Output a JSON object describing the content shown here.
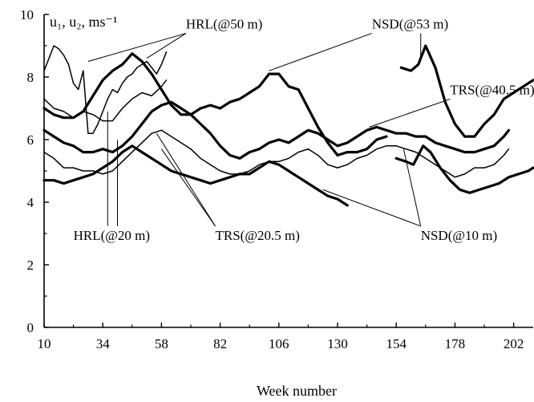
{
  "chart_data": {
    "type": "line",
    "xlabel": "Week number",
    "ylabel": "u₁, u₂, ms⁻¹",
    "xlim": [
      10,
      210
    ],
    "ylim": [
      0,
      10
    ],
    "xticks": [
      10,
      34,
      58,
      82,
      106,
      130,
      154,
      178,
      202
    ],
    "yticks": [
      0,
      2,
      4,
      6,
      8,
      10
    ],
    "grid": false,
    "series": [
      {
        "name": "HRL(@50 m)",
        "weight": "thin",
        "segments": [
          [
            [
              10,
              8.2
            ],
            [
              12,
              8.6
            ],
            [
              14,
              9.0
            ],
            [
              16,
              8.9
            ],
            [
              18,
              8.7
            ],
            [
              20,
              8.4
            ],
            [
              22,
              7.8
            ],
            [
              24,
              7.6
            ],
            [
              26,
              8.2
            ],
            [
              28,
              6.2
            ],
            [
              30,
              6.2
            ],
            [
              32,
              6.5
            ],
            [
              34,
              6.9
            ],
            [
              36,
              7.3
            ],
            [
              38,
              7.6
            ],
            [
              40,
              7.5
            ],
            [
              42,
              7.8
            ],
            [
              44,
              8.0
            ],
            [
              46,
              8.1
            ],
            [
              48,
              8.3
            ],
            [
              50,
              8.4
            ],
            [
              52,
              8.5
            ],
            [
              54,
              8.3
            ],
            [
              56,
              8.1
            ],
            [
              58,
              8.4
            ],
            [
              60,
              8.8
            ]
          ]
        ]
      },
      {
        "name": "NSD(@53 m)",
        "weight": "thick",
        "segments": [
          [
            [
              10,
              7.0
            ],
            [
              14,
              6.8
            ],
            [
              18,
              6.7
            ],
            [
              22,
              6.7
            ],
            [
              26,
              6.9
            ],
            [
              30,
              7.4
            ],
            [
              34,
              7.9
            ],
            [
              38,
              8.2
            ],
            [
              42,
              8.4
            ],
            [
              46,
              8.75
            ],
            [
              50,
              8.5
            ],
            [
              54,
              8.1
            ],
            [
              58,
              7.6
            ],
            [
              62,
              7.1
            ],
            [
              66,
              6.8
            ],
            [
              70,
              6.8
            ],
            [
              74,
              7.0
            ],
            [
              78,
              7.1
            ],
            [
              82,
              7.0
            ],
            [
              86,
              7.2
            ],
            [
              90,
              7.3
            ],
            [
              94,
              7.5
            ],
            [
              98,
              7.7
            ],
            [
              102,
              8.1
            ],
            [
              106,
              8.1
            ],
            [
              110,
              7.7
            ],
            [
              114,
              7.6
            ],
            [
              118,
              7.0
            ],
            [
              122,
              6.4
            ],
            [
              126,
              5.9
            ],
            [
              130,
              5.5
            ],
            [
              134,
              5.6
            ],
            [
              138,
              5.6
            ],
            [
              142,
              5.7
            ],
            [
              146,
              6.0
            ],
            [
              150,
              6.1
            ]
          ],
          [
            [
              156,
              8.3
            ],
            [
              160,
              8.2
            ],
            [
              163,
              8.4
            ],
            [
              166,
              9.0
            ],
            [
              170,
              8.3
            ],
            [
              174,
              7.2
            ],
            [
              178,
              6.5
            ],
            [
              182,
              6.1
            ],
            [
              186,
              6.1
            ],
            [
              190,
              6.5
            ],
            [
              194,
              6.8
            ],
            [
              198,
              7.3
            ],
            [
              202,
              7.5
            ],
            [
              206,
              7.7
            ],
            [
              210,
              7.9
            ]
          ]
        ]
      },
      {
        "name": "TRS(@40.5 m)",
        "weight": "thick",
        "segments": [
          [
            [
              10,
              6.3
            ],
            [
              14,
              6.1
            ],
            [
              18,
              5.9
            ],
            [
              22,
              5.8
            ],
            [
              26,
              5.6
            ],
            [
              30,
              5.6
            ],
            [
              34,
              5.7
            ],
            [
              38,
              5.6
            ],
            [
              42,
              5.8
            ],
            [
              46,
              6.1
            ],
            [
              50,
              6.5
            ],
            [
              54,
              6.9
            ],
            [
              58,
              7.1
            ],
            [
              62,
              7.2
            ],
            [
              66,
              7.0
            ],
            [
              70,
              6.8
            ],
            [
              74,
              6.5
            ],
            [
              78,
              6.2
            ],
            [
              82,
              5.8
            ],
            [
              86,
              5.5
            ],
            [
              90,
              5.4
            ],
            [
              94,
              5.6
            ],
            [
              98,
              5.7
            ],
            [
              102,
              5.9
            ],
            [
              106,
              6.0
            ],
            [
              110,
              5.9
            ],
            [
              114,
              6.1
            ],
            [
              118,
              6.3
            ],
            [
              122,
              6.2
            ],
            [
              126,
              6.0
            ],
            [
              130,
              5.8
            ],
            [
              134,
              5.9
            ],
            [
              138,
              6.1
            ],
            [
              142,
              6.3
            ],
            [
              146,
              6.4
            ],
            [
              150,
              6.3
            ],
            [
              154,
              6.2
            ],
            [
              158,
              6.2
            ],
            [
              162,
              6.1
            ],
            [
              166,
              6.1
            ],
            [
              170,
              5.9
            ],
            [
              174,
              5.8
            ],
            [
              178,
              5.7
            ],
            [
              182,
              5.6
            ],
            [
              186,
              5.6
            ],
            [
              190,
              5.7
            ],
            [
              194,
              5.8
            ],
            [
              198,
              6.1
            ],
            [
              200,
              6.3
            ]
          ]
        ]
      },
      {
        "name": "HRL(@20 m)",
        "weight": "thin",
        "segments": [
          [
            [
              10,
              7.3
            ],
            [
              14,
              7.0
            ],
            [
              18,
              6.9
            ],
            [
              22,
              6.7
            ],
            [
              26,
              6.9
            ],
            [
              30,
              6.8
            ],
            [
              34,
              6.6
            ],
            [
              38,
              6.6
            ],
            [
              42,
              7.0
            ],
            [
              46,
              7.3
            ],
            [
              50,
              7.5
            ],
            [
              54,
              7.4
            ],
            [
              58,
              7.7
            ],
            [
              60,
              7.9
            ]
          ]
        ]
      },
      {
        "name": "TRS(@20.5 m)",
        "weight": "thin",
        "segments": [
          [
            [
              10,
              5.6
            ],
            [
              14,
              5.4
            ],
            [
              18,
              5.1
            ],
            [
              22,
              5.1
            ],
            [
              26,
              5.0
            ],
            [
              30,
              5.0
            ],
            [
              34,
              4.9
            ],
            [
              38,
              5.0
            ],
            [
              42,
              5.3
            ],
            [
              46,
              5.6
            ],
            [
              50,
              5.9
            ],
            [
              54,
              6.2
            ],
            [
              58,
              6.3
            ],
            [
              62,
              6.1
            ],
            [
              66,
              5.9
            ],
            [
              70,
              5.7
            ],
            [
              74,
              5.4
            ],
            [
              78,
              5.2
            ],
            [
              82,
              5.0
            ],
            [
              86,
              4.9
            ],
            [
              90,
              4.9
            ],
            [
              94,
              5.0
            ],
            [
              98,
              5.2
            ],
            [
              102,
              5.3
            ],
            [
              106,
              5.3
            ],
            [
              110,
              5.4
            ],
            [
              114,
              5.6
            ],
            [
              118,
              5.7
            ],
            [
              122,
              5.5
            ],
            [
              126,
              5.2
            ],
            [
              130,
              5.1
            ],
            [
              134,
              5.2
            ],
            [
              138,
              5.4
            ],
            [
              142,
              5.5
            ],
            [
              146,
              5.7
            ],
            [
              150,
              5.8
            ],
            [
              154,
              5.8
            ],
            [
              158,
              5.7
            ],
            [
              162,
              5.6
            ],
            [
              166,
              5.4
            ],
            [
              170,
              5.2
            ],
            [
              174,
              5.0
            ],
            [
              178,
              4.8
            ],
            [
              182,
              4.9
            ],
            [
              186,
              5.1
            ],
            [
              190,
              5.1
            ],
            [
              194,
              5.2
            ],
            [
              198,
              5.5
            ],
            [
              200,
              5.7
            ]
          ]
        ]
      },
      {
        "name": "NSD(@10 m)",
        "weight": "thick",
        "segments": [
          [
            [
              10,
              4.7
            ],
            [
              14,
              4.7
            ],
            [
              18,
              4.6
            ],
            [
              22,
              4.7
            ],
            [
              26,
              4.8
            ],
            [
              30,
              4.9
            ],
            [
              34,
              5.1
            ],
            [
              38,
              5.3
            ],
            [
              42,
              5.6
            ],
            [
              46,
              5.8
            ],
            [
              50,
              5.6
            ],
            [
              54,
              5.4
            ],
            [
              58,
              5.2
            ],
            [
              62,
              5.0
            ],
            [
              66,
              4.9
            ],
            [
              70,
              4.8
            ],
            [
              74,
              4.7
            ],
            [
              78,
              4.6
            ],
            [
              82,
              4.7
            ],
            [
              86,
              4.8
            ],
            [
              90,
              4.9
            ],
            [
              94,
              4.9
            ],
            [
              98,
              5.1
            ],
            [
              102,
              5.3
            ],
            [
              106,
              5.2
            ],
            [
              110,
              5.0
            ],
            [
              114,
              4.8
            ],
            [
              118,
              4.6
            ],
            [
              122,
              4.4
            ],
            [
              126,
              4.2
            ],
            [
              130,
              4.1
            ],
            [
              134,
              3.9
            ]
          ],
          [
            [
              154,
              5.4
            ],
            [
              158,
              5.3
            ],
            [
              161,
              5.2
            ],
            [
              165,
              5.8
            ],
            [
              168,
              5.6
            ],
            [
              172,
              5.1
            ],
            [
              176,
              4.7
            ],
            [
              180,
              4.4
            ],
            [
              184,
              4.3
            ],
            [
              188,
              4.4
            ],
            [
              192,
              4.5
            ],
            [
              196,
              4.6
            ],
            [
              200,
              4.8
            ],
            [
              204,
              4.9
            ],
            [
              208,
              5.0
            ],
            [
              210,
              5.1
            ]
          ]
        ]
      }
    ],
    "annotations": [
      {
        "text": "HRL(@50 m)",
        "anchor": [
          68,
          9.55
        ],
        "leaders": [
          [
            28,
            8.5
          ],
          [
            52,
            8.6
          ]
        ]
      },
      {
        "text": "NSD(@53 m)",
        "anchor": [
          144,
          9.55
        ],
        "leaders": [
          [
            102,
            8.2
          ],
          [
            164,
            8.6
          ]
        ]
      },
      {
        "text": "TRS(@40.5 m)",
        "anchor": [
          176,
          7.45
        ],
        "leaders": [
          [
            143,
            6.4
          ]
        ]
      },
      {
        "text": "HRL(@20 m)",
        "anchor": [
          22,
          2.8
        ],
        "leaders": [
          [
            36,
            6.9
          ],
          [
            40,
            6.0
          ]
        ]
      },
      {
        "text": "TRS(@20.5 m)",
        "anchor": [
          80,
          2.8
        ],
        "leaders": [
          [
            56,
            6.2
          ],
          [
            58,
            5.7
          ]
        ]
      },
      {
        "text": "NSD(@10 m)",
        "anchor": [
          164,
          2.8
        ],
        "leaders": [
          [
            124,
            4.4
          ],
          [
            157,
            5.7
          ]
        ]
      }
    ]
  }
}
